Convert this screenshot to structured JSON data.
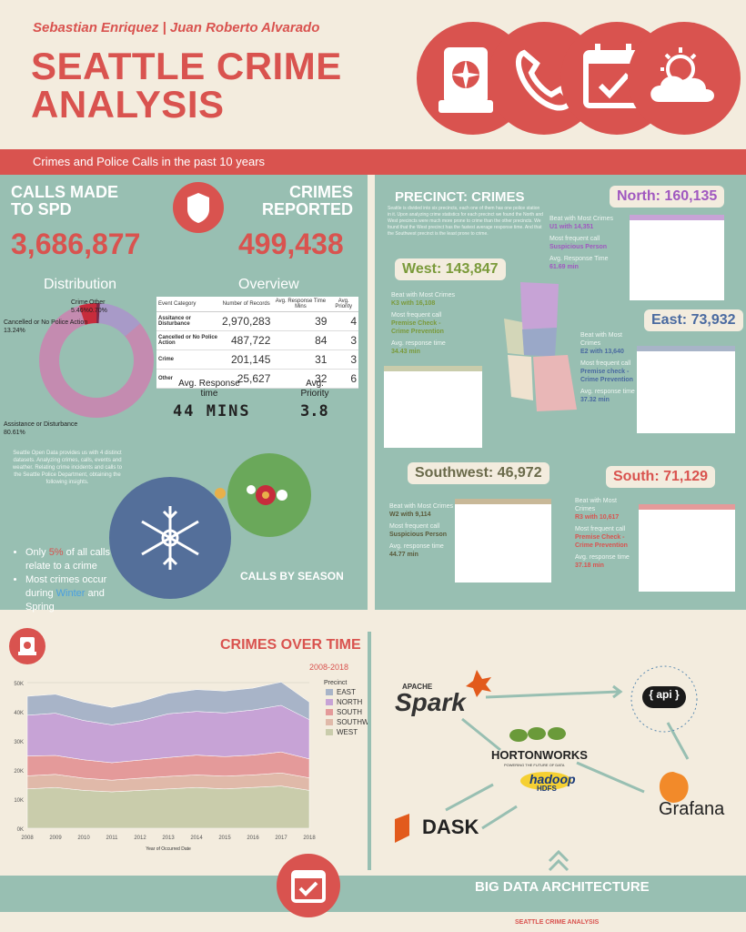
{
  "header": {
    "authors": "Sebastian Enriquez | Juan Roberto Alvarado",
    "title_line1": "SEATTLE CRIME",
    "title_line2": "ANALYSIS",
    "subtitle": "Crimes and Police Calls in the past 10 years"
  },
  "left": {
    "calls_label_1": "CALLS MADE",
    "calls_label_2": "TO SPD",
    "calls_value": "3,686,877",
    "crimes_label_1": "CRIMES",
    "crimes_label_2": "REPORTED",
    "crimes_value": "499,438",
    "distribution_title": "Distribution",
    "overview_title": "Overview",
    "donut_labels": {
      "crime": "Crime",
      "crime_pct": "5.46%",
      "other": "Other",
      "other_pct": "0.70%",
      "cancelled": "Cancelled or No Police Action",
      "cancelled_pct": "13.24%",
      "assist": "Assistance or Disturbance",
      "assist_pct": "80.61%"
    },
    "overview_headers": [
      "Event Category",
      "Number of Records",
      "Avg. Response Time Mins",
      "Avg. Priority"
    ],
    "overview_rows": [
      [
        "Assitance or Disturbance",
        "2,970,283",
        "39",
        "4"
      ],
      [
        "Cancelled or No Police Action",
        "487,722",
        "84",
        "3"
      ],
      [
        "Crime",
        "201,145",
        "31",
        "3"
      ],
      [
        "Other",
        "25,627",
        "32",
        "6"
      ]
    ],
    "avg_response_label": "Avg. Response time",
    "avg_response_value": "44 MINS",
    "avg_priority_label": "Avg. Priority",
    "avg_priority_value": "3.8",
    "intro_text": "Seattle Open Data provides us with 4 distinct datasets. Analyzing crimes, calls, events and weather. Relating crime incidents and calls to the Seattle Police Department, obtaining the following insights.",
    "bullet1_a": "Only ",
    "bullet1_b": "5%",
    "bullet1_c": " of all calls relate to a crime",
    "bullet2_a": "Most crimes occur during ",
    "bullet2_b": "Winter",
    "bullet2_c": " and Spring",
    "calls_by_season": "CALLS BY SEASON"
  },
  "right": {
    "precinct_title": "PRECINCT: CRIMES",
    "precinct_text": "Seattle is divided into six precincts, each one of them has one police station in it. Upon analyzing crime statistics for each precinct we found the North and West precincts were much more prone to crime than the other precincts. We found that the West precinct has the fastest average response time. And that the Southwest precinct is the least prone to crime.",
    "north": {
      "label": "North: 160,135",
      "beat": "Beat with Most Crimes",
      "beat_val": "U1 with 14,351",
      "freq": "Most frequent call",
      "freq_val": "Suspicious Person",
      "resp": "Avg. Response Time",
      "resp_val": "61.69 min"
    },
    "west": {
      "label": "West: 143,847",
      "beat": "Beat with Most Crimes",
      "beat_val": "K3 with 16,108",
      "freq": "Most frequent call",
      "freq_val": "Premise Check - Crime Prevention",
      "resp": "Avg. response time",
      "resp_val": "34.43 min"
    },
    "east": {
      "label": "East: 73,932",
      "beat": "Beat with Most Crimes",
      "beat_val": "E2 with 13,640",
      "freq": "Most frequent call",
      "freq_val": "Premise check - Crime Prevention",
      "resp": "Avg. response time",
      "resp_val": "37.32 min"
    },
    "southwest": {
      "label": "Southwest: 46,972",
      "beat": "Beat with Most Crimes",
      "beat_val": "W2 with 9,114",
      "freq": "Most frequent call",
      "freq_val": "Suspicious Person",
      "resp": "Avg. response time",
      "resp_val": "44.77 min"
    },
    "south": {
      "label": "South:  71,129",
      "beat": "Beat with Most Crimes",
      "beat_val": "R3 with 10,617",
      "freq": "Most frequent call",
      "freq_val": "Premise Check - Crime Prevention",
      "resp": "Avg. response time",
      "resp_val": "37.18 min"
    }
  },
  "bottom": {
    "crimes_over_time": "CRIMES OVER TIME",
    "range": "2008-2018",
    "big_data": "BIG DATA ARCHITECTURE",
    "footer": "SEATTLE CRIME ANALYSIS",
    "tech": {
      "spark_small": "APACHE",
      "spark": "Spark",
      "hortonworks": "HORTONWORKS",
      "hortonworks_sub": "POWERING THE FUTURE OF DATA",
      "hadoop": "hadoop",
      "hdfs": "HDFS",
      "dask": "DASK",
      "api": "{ api }",
      "grafana": "Grafana"
    }
  },
  "chart_data": {
    "type": "area",
    "title": "",
    "xlabel": "Year of Occurred Date",
    "ylabel": "",
    "x": [
      2008,
      2009,
      2010,
      2011,
      2012,
      2013,
      2014,
      2015,
      2016,
      2017,
      2018
    ],
    "ylim": [
      0,
      50000
    ],
    "yticks": [
      "0K",
      "10K",
      "20K",
      "30K",
      "40K",
      "50K"
    ],
    "legend_title": "Precinct",
    "legend_position": "right",
    "series": [
      {
        "name": "WEST",
        "color": "#c9ccab",
        "values": [
          13500,
          14000,
          13000,
          12500,
          13000,
          13500,
          14000,
          13500,
          14000,
          14500,
          13000
        ]
      },
      {
        "name": "SOUTHW",
        "color": "#e0b9a9",
        "values": [
          4500,
          4500,
          4200,
          4000,
          4200,
          4300,
          4300,
          4400,
          4300,
          4500,
          4300
        ]
      },
      {
        "name": "SOUTH",
        "color": "#e49a9a",
        "values": [
          6800,
          6500,
          6300,
          6000,
          6200,
          6500,
          6800,
          6700,
          6800,
          7200,
          6500
        ]
      },
      {
        "name": "NORTH",
        "color": "#c7a3d6",
        "values": [
          14000,
          14500,
          13500,
          13000,
          13500,
          15000,
          15000,
          15000,
          15500,
          16000,
          13500
        ]
      },
      {
        "name": "EAST",
        "color": "#a8b4c8",
        "values": [
          6500,
          6500,
          6300,
          6000,
          6500,
          7000,
          7500,
          7500,
          7500,
          8000,
          6000
        ]
      }
    ]
  },
  "colors": {
    "accent": "#d9534f",
    "teal": "#98bfb2",
    "cream": "#f3ecde",
    "navy": "#546f9a",
    "green": "#6aa85a"
  }
}
